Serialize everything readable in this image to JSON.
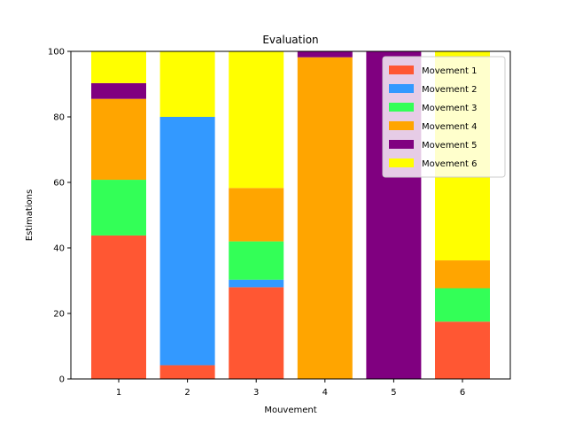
{
  "chart_data": {
    "type": "bar",
    "stacked": true,
    "title": "Evaluation",
    "xlabel": "Mouvement",
    "ylabel": "Estimations",
    "ylim": [
      0,
      100
    ],
    "categories": [
      "1",
      "2",
      "3",
      "4",
      "5",
      "6"
    ],
    "yticks": [
      "0",
      "20",
      "40",
      "60",
      "80",
      "100"
    ],
    "legend_position": "top-right",
    "grid": false,
    "series": [
      {
        "name": "Movement 1",
        "color": "#ff5733",
        "values": [
          43.8,
          4.2,
          28.0,
          0,
          0,
          17.5
        ]
      },
      {
        "name": "Movement 2",
        "color": "#3399ff",
        "values": [
          0,
          75.8,
          2.3,
          0,
          0,
          0
        ]
      },
      {
        "name": "Movement 3",
        "color": "#33ff57",
        "values": [
          17.0,
          0,
          11.7,
          0,
          0,
          10.2
        ]
      },
      {
        "name": "Movement 4",
        "color": "#ffa500",
        "values": [
          24.7,
          0,
          16.3,
          98.2,
          0,
          8.5
        ]
      },
      {
        "name": "Movement 5",
        "color": "#800080",
        "values": [
          4.8,
          0,
          0,
          1.8,
          100,
          0
        ]
      },
      {
        "name": "Movement 6",
        "color": "#ffff00",
        "values": [
          9.7,
          20.0,
          41.7,
          0,
          0,
          63.8
        ]
      }
    ]
  }
}
